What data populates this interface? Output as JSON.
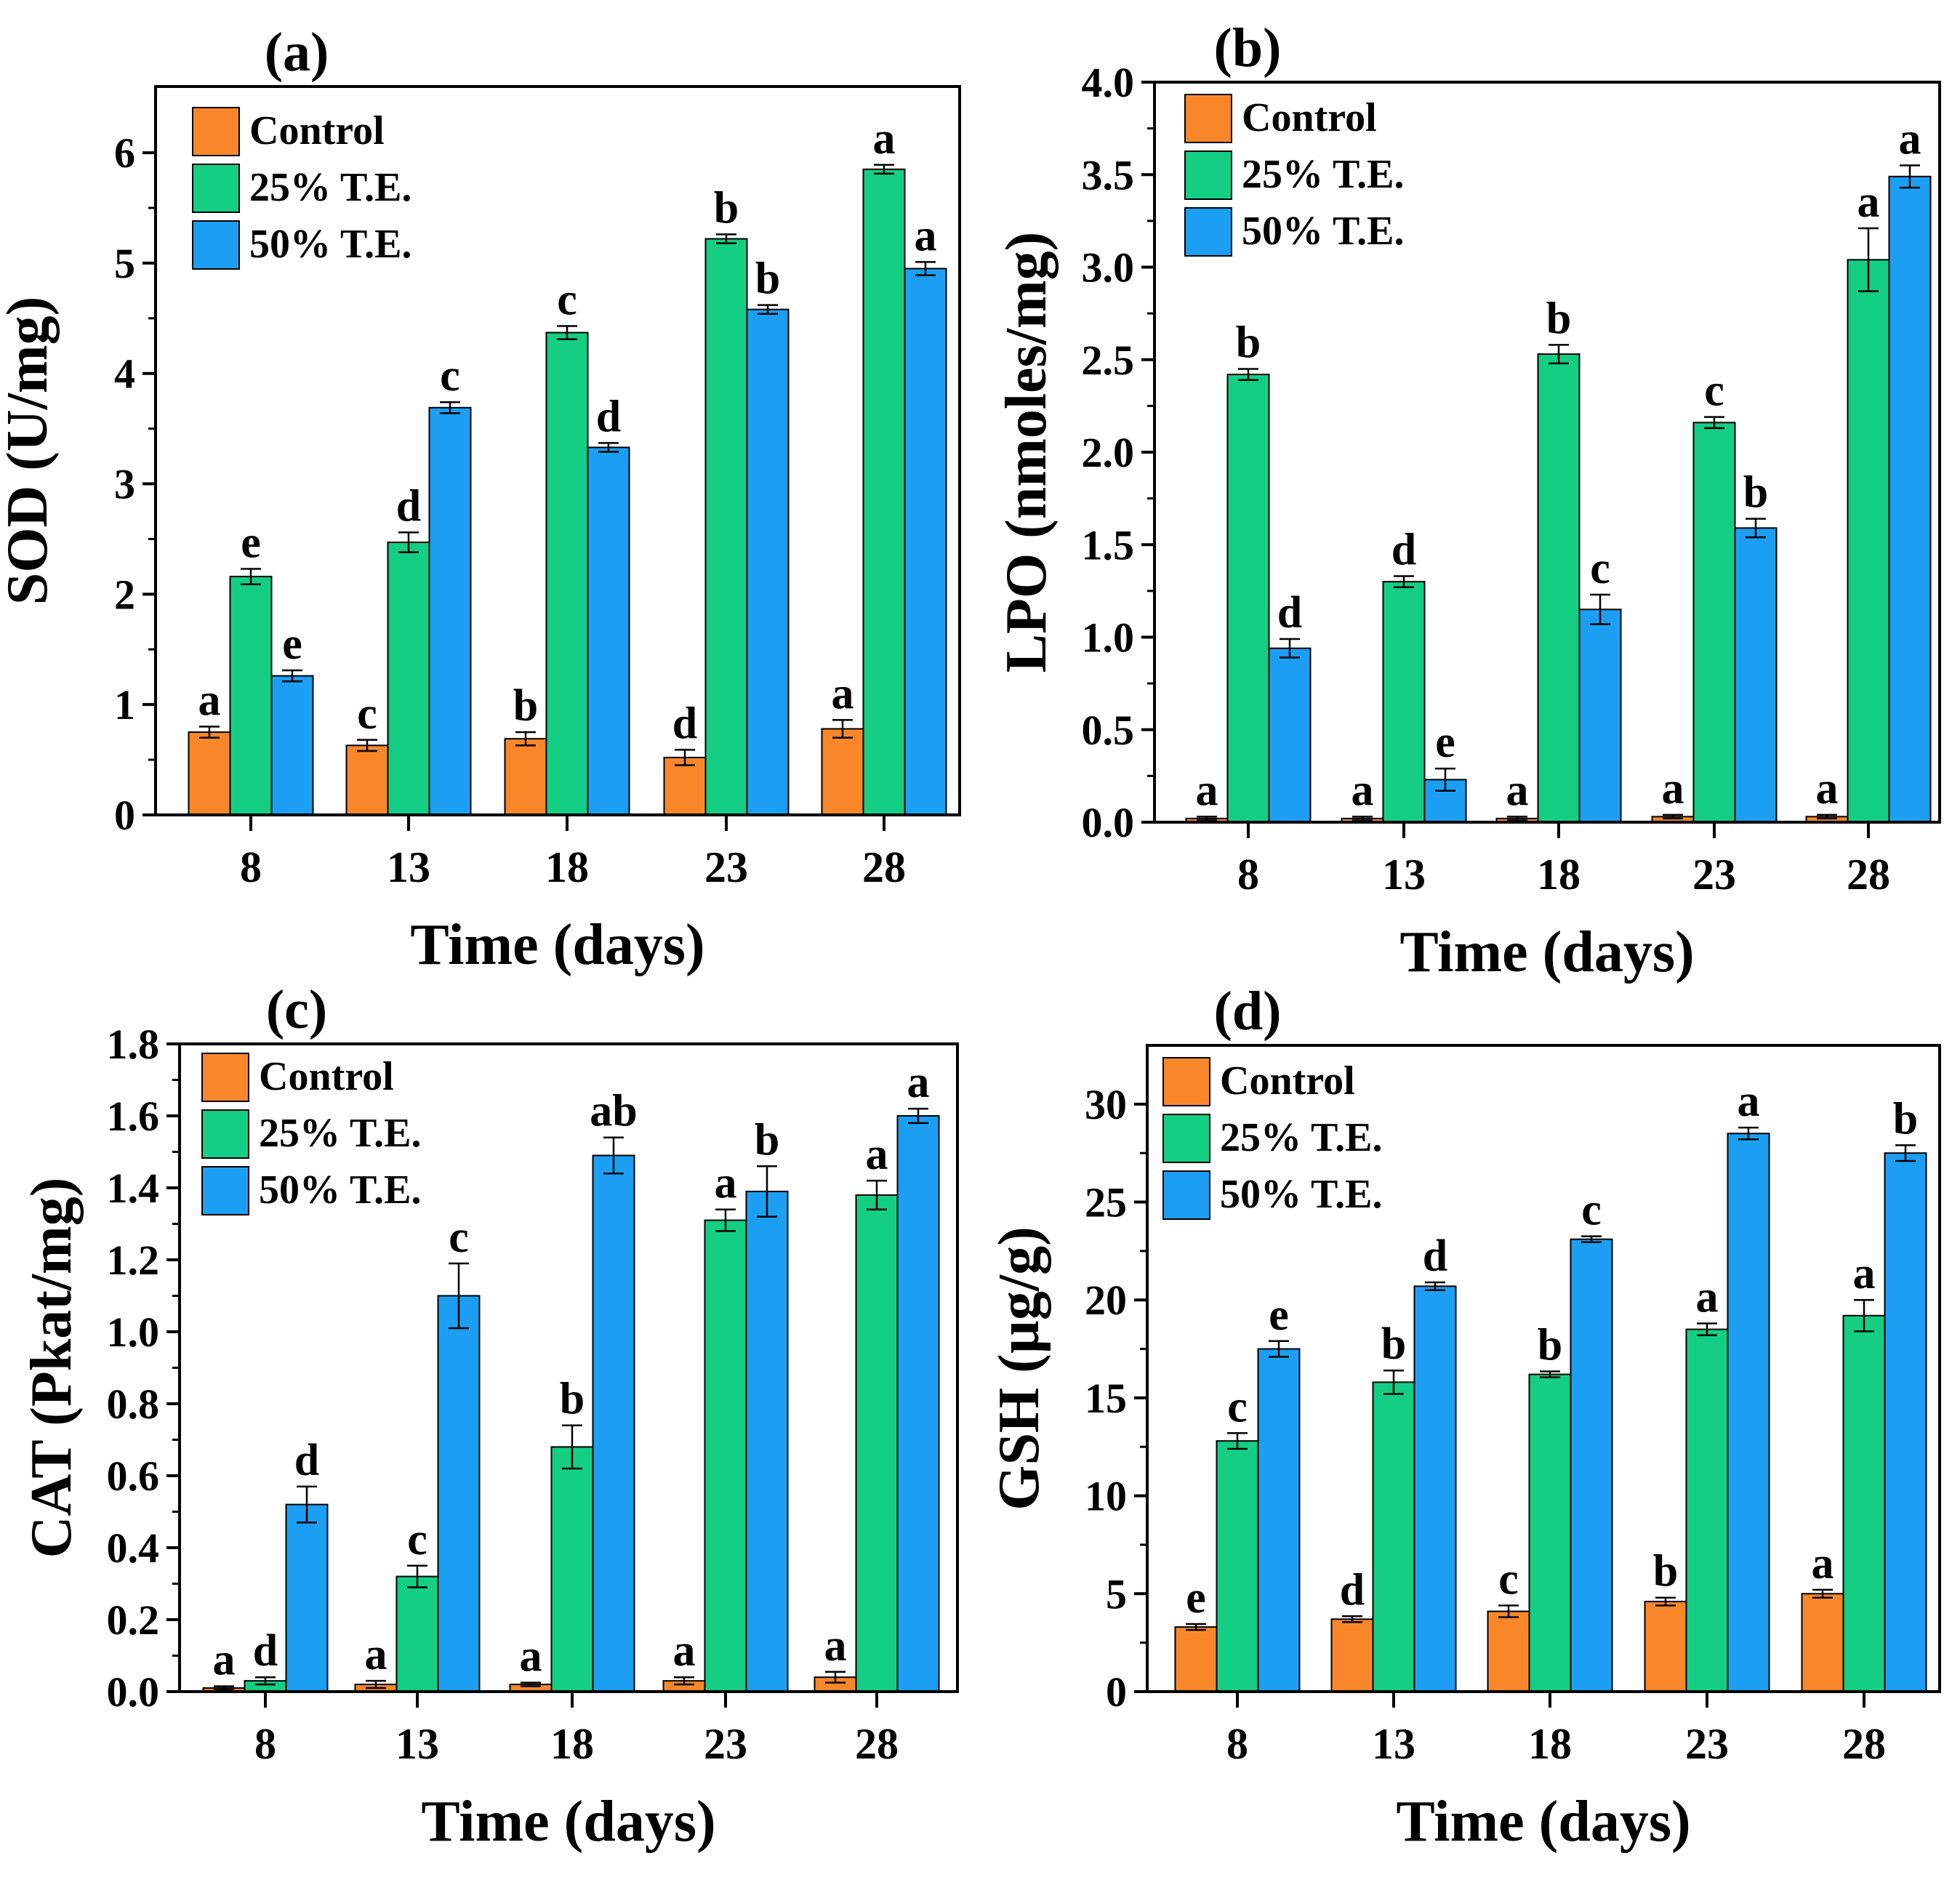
{
  "colors": {
    "control": "#F9872A",
    "te25": "#14CE84",
    "te50": "#1C9FF2",
    "axis": "#000000"
  },
  "chart_data": [
    {
      "type": "bar",
      "panel_label": "(a)",
      "xlabel": "Time (days)",
      "ylabel": "SOD (U/mg)",
      "categories": [
        "8",
        "13",
        "18",
        "23",
        "28"
      ],
      "ylim": [
        0,
        6.6
      ],
      "yticks": [
        0,
        1,
        2,
        3,
        4,
        5,
        6
      ],
      "ytick_labels": [
        "0",
        "1",
        "2",
        "3",
        "4",
        "5",
        "6"
      ],
      "legend_position": "top-left",
      "legend": [
        "Control",
        "25% T.E.",
        "50% T.E."
      ],
      "series": [
        {
          "name": "Control",
          "values": [
            0.75,
            0.63,
            0.69,
            0.52,
            0.78
          ],
          "errors": [
            0.05,
            0.05,
            0.06,
            0.07,
            0.08
          ],
          "letters": [
            "a",
            "c",
            "b",
            "d",
            "a"
          ]
        },
        {
          "name": "25% T.E.",
          "values": [
            2.16,
            2.47,
            4.37,
            5.22,
            5.85
          ],
          "errors": [
            0.07,
            0.09,
            0.06,
            0.04,
            0.04
          ],
          "letters": [
            "e",
            "d",
            "c",
            "b",
            "a"
          ]
        },
        {
          "name": "50% T.E.",
          "values": [
            1.26,
            3.69,
            3.33,
            4.58,
            4.95
          ],
          "errors": [
            0.05,
            0.05,
            0.04,
            0.04,
            0.06
          ],
          "letters": [
            "e",
            "c",
            "d",
            "b",
            "a"
          ]
        }
      ]
    },
    {
      "type": "bar",
      "panel_label": "(b)",
      "xlabel": "Time (days)",
      "ylabel": "LPO (nmoles/mg)",
      "categories": [
        "8",
        "13",
        "18",
        "23",
        "28"
      ],
      "ylim": [
        0,
        4.0
      ],
      "yticks": [
        0,
        0.5,
        1.0,
        1.5,
        2.0,
        2.5,
        3.0,
        3.5,
        4.0
      ],
      "ytick_labels": [
        "0.0",
        "0.5",
        "1.0",
        "1.5",
        "2.0",
        "2.5",
        "3.0",
        "3.5",
        "4.0"
      ],
      "legend_position": "top-left",
      "legend": [
        "Control",
        "25% T.E.",
        "50% T.E."
      ],
      "series": [
        {
          "name": "Control",
          "values": [
            0.02,
            0.02,
            0.02,
            0.03,
            0.03
          ],
          "errors": [
            0.01,
            0.01,
            0.01,
            0.01,
            0.01
          ],
          "letters": [
            "a",
            "a",
            "a",
            "a",
            "a"
          ]
        },
        {
          "name": "25% T.E.",
          "values": [
            2.42,
            1.3,
            2.53,
            2.16,
            3.04
          ],
          "errors": [
            0.03,
            0.03,
            0.05,
            0.03,
            0.17
          ],
          "letters": [
            "b",
            "d",
            "b",
            "c",
            "a"
          ]
        },
        {
          "name": "50% T.E.",
          "values": [
            0.94,
            0.23,
            1.15,
            1.59,
            3.49
          ],
          "errors": [
            0.05,
            0.06,
            0.08,
            0.05,
            0.06
          ],
          "letters": [
            "d",
            "e",
            "c",
            "b",
            "a"
          ]
        }
      ]
    },
    {
      "type": "bar",
      "panel_label": "(c)",
      "xlabel": "Time (days)",
      "ylabel": "CAT (Pkat/mg)",
      "categories": [
        "8",
        "13",
        "18",
        "23",
        "28"
      ],
      "ylim": [
        0,
        1.8
      ],
      "yticks": [
        0,
        0.2,
        0.4,
        0.6,
        0.8,
        1.0,
        1.2,
        1.4,
        1.6,
        1.8
      ],
      "ytick_labels": [
        "0.0",
        "0.2",
        "0.4",
        "0.6",
        "0.8",
        "1.0",
        "1.2",
        "1.4",
        "1.6",
        "1.8"
      ],
      "legend_position": "top-left",
      "legend": [
        "Control",
        "25% T.E.",
        "50% T.E."
      ],
      "series": [
        {
          "name": "Control",
          "values": [
            0.01,
            0.02,
            0.02,
            0.03,
            0.04
          ],
          "errors": [
            0.005,
            0.01,
            0.005,
            0.01,
            0.015
          ],
          "letters": [
            "a",
            "a",
            "a",
            "a",
            "a"
          ]
        },
        {
          "name": "25% T.E.",
          "values": [
            0.03,
            0.32,
            0.68,
            1.31,
            1.38
          ],
          "errors": [
            0.01,
            0.03,
            0.06,
            0.03,
            0.04
          ],
          "letters": [
            "d",
            "c",
            "b",
            "a",
            "a"
          ]
        },
        {
          "name": "50% T.E.",
          "values": [
            0.52,
            1.1,
            1.49,
            1.39,
            1.6
          ],
          "errors": [
            0.05,
            0.09,
            0.05,
            0.07,
            0.02
          ],
          "letters": [
            "d",
            "c",
            "ab",
            "b",
            "a"
          ]
        }
      ]
    },
    {
      "type": "bar",
      "panel_label": "(d)",
      "xlabel": "Time (days)",
      "ylabel": "GSH (µg/g)",
      "categories": [
        "8",
        "13",
        "18",
        "23",
        "28"
      ],
      "ylim": [
        0,
        33
      ],
      "yticks": [
        0,
        5,
        10,
        15,
        20,
        25,
        30
      ],
      "ytick_labels": [
        "0",
        "5",
        "10",
        "15",
        "20",
        "25",
        "30"
      ],
      "legend_position": "top-left",
      "legend": [
        "Control",
        "25% T.E.",
        "50% T.E."
      ],
      "series": [
        {
          "name": "Control",
          "values": [
            3.3,
            3.7,
            4.1,
            4.6,
            5.0
          ],
          "errors": [
            0.15,
            0.15,
            0.3,
            0.2,
            0.2
          ],
          "letters": [
            "e",
            "d",
            "c",
            "b",
            "a"
          ]
        },
        {
          "name": "25% T.E.",
          "values": [
            12.8,
            15.8,
            16.2,
            18.5,
            19.2
          ],
          "errors": [
            0.4,
            0.6,
            0.15,
            0.3,
            0.8
          ],
          "letters": [
            "c",
            "b",
            "b",
            "a",
            "a"
          ]
        },
        {
          "name": "50% T.E.",
          "values": [
            17.5,
            20.7,
            23.1,
            28.5,
            27.5
          ],
          "errors": [
            0.4,
            0.2,
            0.15,
            0.3,
            0.4
          ],
          "letters": [
            "e",
            "d",
            "c",
            "a",
            "b"
          ]
        }
      ]
    }
  ]
}
